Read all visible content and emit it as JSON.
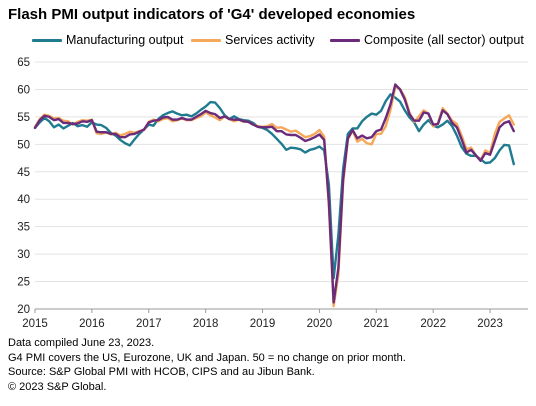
{
  "title": "Flash PMI output indicators of 'G4' developed economies",
  "chart_data": {
    "type": "line",
    "x_start": "2015-01",
    "x_end": "2023-06",
    "x_frequency": "monthly",
    "xticks": [
      "2015",
      "2016",
      "2017",
      "2018",
      "2019",
      "2020",
      "2021",
      "2022",
      "2023"
    ],
    "ylim": [
      20,
      65
    ],
    "yticks": [
      20,
      25,
      30,
      35,
      40,
      45,
      50,
      55,
      60,
      65
    ],
    "grid": "horizontal",
    "legend_position": "top",
    "series": [
      {
        "name": "Manufacturing output",
        "color": "#1f7b8f",
        "values": [
          53.0,
          54.0,
          54.8,
          54.2,
          53.1,
          53.6,
          52.9,
          53.4,
          53.9,
          53.3,
          53.5,
          53.2,
          54.0,
          53.6,
          53.5,
          53.0,
          52.1,
          51.6,
          50.8,
          50.2,
          49.8,
          50.9,
          51.9,
          52.7,
          53.6,
          53.4,
          54.6,
          55.3,
          55.7,
          56.0,
          55.6,
          55.3,
          55.4,
          55.1,
          55.6,
          56.3,
          56.9,
          57.7,
          57.6,
          56.6,
          55.3,
          54.6,
          55.1,
          54.6,
          54.4,
          54.3,
          53.9,
          53.2,
          53.0,
          52.6,
          51.9,
          51.0,
          50.1,
          49.0,
          49.4,
          49.3,
          49.1,
          48.5,
          49.0,
          49.2,
          49.6,
          48.9,
          42.6,
          25.6,
          33.5,
          45.5,
          51.9,
          52.9,
          52.9,
          54.2,
          55.0,
          55.6,
          55.4,
          56.1,
          57.9,
          59.1,
          58.5,
          57.8,
          56.2,
          54.9,
          54.0,
          52.4,
          53.6,
          54.4,
          53.4,
          53.1,
          53.6,
          54.3,
          53.3,
          51.6,
          49.5,
          48.3,
          47.9,
          47.9,
          47.3,
          46.6,
          46.7,
          47.5,
          48.9,
          49.9,
          49.8,
          46.4
        ]
      },
      {
        "name": "Services activity",
        "color": "#f6a85a",
        "values": [
          53.2,
          54.6,
          55.4,
          55.2,
          54.7,
          54.8,
          54.3,
          54.2,
          53.6,
          54.1,
          54.4,
          54.3,
          54.5,
          52.0,
          51.9,
          52.2,
          51.8,
          52.1,
          51.6,
          51.9,
          52.3,
          52.1,
          52.4,
          52.6,
          54.1,
          54.5,
          54.2,
          54.6,
          54.8,
          54.2,
          54.4,
          54.7,
          54.4,
          54.4,
          54.8,
          55.1,
          55.8,
          55.3,
          54.9,
          54.4,
          55.1,
          54.6,
          54.2,
          54.5,
          54.1,
          54.1,
          53.6,
          53.3,
          53.2,
          53.3,
          53.7,
          53.0,
          53.1,
          52.7,
          52.3,
          52.5,
          51.9,
          51.3,
          51.5,
          51.9,
          52.6,
          51.4,
          38.7,
          20.5,
          26.3,
          43.0,
          50.9,
          52.5,
          50.5,
          51.0,
          50.2,
          50.0,
          51.9,
          51.9,
          53.3,
          56.3,
          60.5,
          60.1,
          58.6,
          55.8,
          54.1,
          55.1,
          56.2,
          55.6,
          53.3,
          53.8,
          56.6,
          55.6,
          54.3,
          53.7,
          51.6,
          49.1,
          49.4,
          48.0,
          47.1,
          48.9,
          48.4,
          51.9,
          54.1,
          54.7,
          55.3,
          53.6
        ]
      },
      {
        "name": "Composite (all sector) output",
        "color": "#6b2b7a",
        "values": [
          53.0,
          54.4,
          55.2,
          55.0,
          54.4,
          54.6,
          53.9,
          53.9,
          53.7,
          53.8,
          54.2,
          54.1,
          54.4,
          52.3,
          52.2,
          52.2,
          51.9,
          51.9,
          51.3,
          51.3,
          51.8,
          51.9,
          52.3,
          52.7,
          54.0,
          54.3,
          54.4,
          54.9,
          55.0,
          54.5,
          54.5,
          54.8,
          54.5,
          54.5,
          55.0,
          55.5,
          56.1,
          55.7,
          55.5,
          54.8,
          55.1,
          54.6,
          54.5,
          54.5,
          54.2,
          54.1,
          53.6,
          53.2,
          53.1,
          53.1,
          53.2,
          52.4,
          52.4,
          51.8,
          51.7,
          51.7,
          51.2,
          50.6,
          50.9,
          51.3,
          51.8,
          50.8,
          39.4,
          21.2,
          27.5,
          43.6,
          51.1,
          52.6,
          51.1,
          51.6,
          51.1,
          51.3,
          52.4,
          52.7,
          54.8,
          57.3,
          60.9,
          60.0,
          58.2,
          55.5,
          54.3,
          54.3,
          55.8,
          55.6,
          53.6,
          53.7,
          56.2,
          55.5,
          53.9,
          53.1,
          50.9,
          48.5,
          49.0,
          48.0,
          47.0,
          48.4,
          48.1,
          50.6,
          53.1,
          53.9,
          54.2,
          52.4
        ]
      }
    ]
  },
  "footer": {
    "line1": "Data compiled June 23, 2023.",
    "line2": "G4 PMI covers the US, Eurozone, UK and Japan. 50 = no change on prior month.",
    "line3": "Source: S&P Global PMI  with HCOB, CIPS and au Jibun Bank.",
    "line4": "© 2023 S&P Global."
  }
}
